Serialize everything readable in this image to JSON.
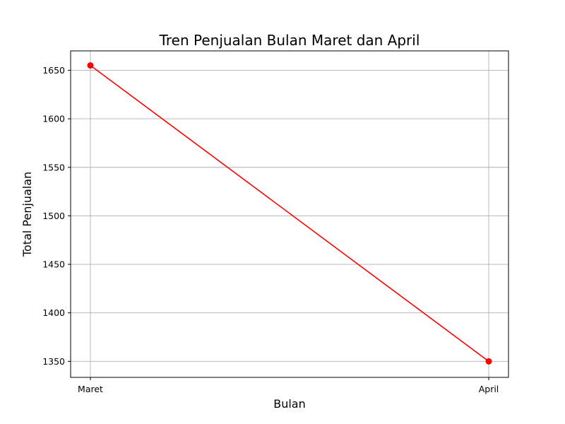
{
  "chart_data": {
    "type": "line",
    "title": "Tren Penjualan Bulan Maret dan April",
    "xlabel": "Bulan",
    "ylabel": "Total Penjualan",
    "categories": [
      "Maret",
      "April"
    ],
    "series": [
      {
        "values": [
          1655,
          1350
        ],
        "color": "#ff0000",
        "marker": "circle"
      }
    ],
    "ylim": [
      1333.5,
      1670
    ],
    "yticks": [
      1350,
      1400,
      1450,
      1500,
      1550,
      1600,
      1650
    ],
    "grid": true,
    "legend": "none"
  }
}
